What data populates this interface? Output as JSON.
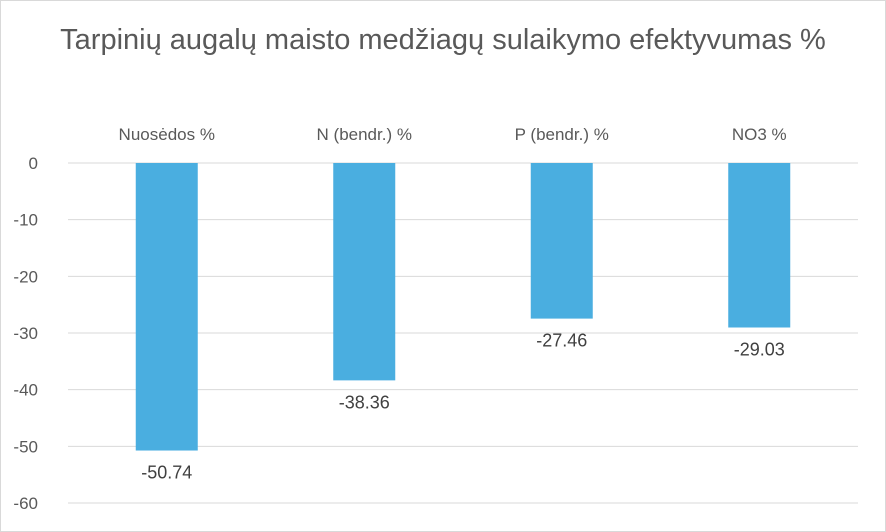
{
  "chart_data": {
    "type": "bar",
    "title": "Tarpinių augalų maisto medžiagų sulaikymo efektyvumas %",
    "categories": [
      "Nuosėdos %",
      "N (bendr.) %",
      "P (bendr.) %",
      "NO3 %"
    ],
    "values": [
      -50.74,
      -38.36,
      -27.46,
      -29.03
    ],
    "data_labels": [
      "-50.74",
      "-38.36",
      "-27.46",
      "-29.03"
    ],
    "yticks": [
      "0",
      "-10",
      "-20",
      "-30",
      "-40",
      "-50",
      "-60"
    ],
    "ylim": [
      -60,
      0
    ],
    "xlabel": "",
    "ylabel": "",
    "category_axis_position": "top",
    "grid": true,
    "legend": "none",
    "colors": {
      "bar": "#4aaee0",
      "grid": "#d9d9d9",
      "text": "#595959"
    }
  }
}
